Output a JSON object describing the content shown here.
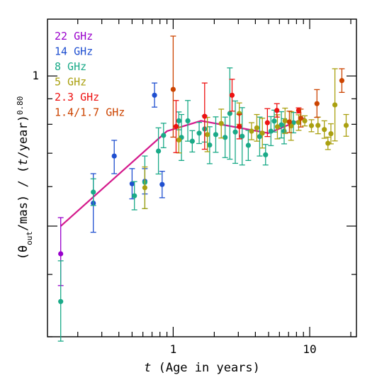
{
  "chart_data": {
    "type": "scatter",
    "x_axis": {
      "scale": "log",
      "range": [
        0.12,
        22
      ],
      "tick_labels": [
        "1",
        "10"
      ],
      "tick_values": [
        1,
        10
      ],
      "label_italic": "t",
      "label_rest": " (Age in years)"
    },
    "y_axis": {
      "scale": "log",
      "range": [
        0.3,
        1.3
      ],
      "tick_labels": [
        "1"
      ],
      "tick_values": [
        1
      ],
      "label_parts": [
        "(θ",
        "out",
        "/mas) / (",
        "t",
        "/year)",
        "0.80"
      ]
    },
    "legend": {
      "placement": "top-left",
      "entries": [
        {
          "label": "22 GHz",
          "color": "#9900cc"
        },
        {
          "label": "14 GHz",
          "color": "#1f4fd0"
        },
        {
          "label": "8 GHz",
          "color": "#1aaa88"
        },
        {
          "label": "5 GHz",
          "color": "#aaa010"
        },
        {
          "label": "2.3 GHz",
          "color": "#ee1111"
        },
        {
          "label": "1.4/1.7 GHz",
          "color": "#cc4400"
        }
      ]
    },
    "series": [
      {
        "name": "22 GHz",
        "color": "#9900cc",
        "points": [
          [
            0.15,
            0.44,
            0.52,
            0.38
          ]
        ]
      },
      {
        "name": "14 GHz",
        "color": "#1f4fd0",
        "points": [
          [
            0.26,
            0.556,
            0.637,
            0.486
          ],
          [
            0.37,
            0.691,
            0.743,
            0.637
          ],
          [
            0.5,
            0.608,
            0.652,
            0.567
          ],
          [
            0.62,
            0.615,
            0.652,
            0.58
          ],
          [
            0.73,
            0.915,
            0.968,
            0.866
          ],
          [
            0.83,
            0.606,
            0.644,
            0.57
          ]
        ]
      },
      {
        "name": "8 GHz",
        "color": "#1aaa88",
        "points": [
          [
            0.15,
            0.353,
            0.426,
            0.294
          ],
          [
            0.26,
            0.585,
            0.622,
            0.55
          ],
          [
            0.52,
            0.575,
            0.614,
            0.539
          ],
          [
            0.62,
            0.612,
            0.691,
            0.542
          ],
          [
            0.78,
            0.707,
            0.787,
            0.636
          ],
          [
            0.85,
            0.76,
            0.804,
            0.718
          ],
          [
            1.1,
            0.813,
            0.847,
            0.78
          ],
          [
            1.15,
            0.753,
            0.837,
            0.677
          ],
          [
            1.28,
            0.813,
            0.893,
            0.74
          ],
          [
            1.38,
            0.74,
            0.777,
            0.704
          ],
          [
            1.55,
            0.768,
            0.807,
            0.732
          ],
          [
            1.7,
            0.783,
            0.832,
            0.737
          ],
          [
            1.85,
            0.727,
            0.791,
            0.667
          ],
          [
            2.05,
            0.763,
            0.828,
            0.703
          ],
          [
            2.4,
            0.753,
            0.827,
            0.686
          ],
          [
            2.6,
            0.841,
            1.038,
            0.681
          ],
          [
            2.85,
            0.772,
            0.891,
            0.668
          ],
          [
            3.2,
            0.757,
            0.864,
            0.663
          ],
          [
            3.55,
            0.726,
            0.778,
            0.677
          ],
          [
            4.3,
            0.756,
            0.827,
            0.691
          ],
          [
            4.75,
            0.695,
            0.729,
            0.663
          ],
          [
            5.2,
            0.775,
            0.829,
            0.725
          ],
          [
            5.5,
            0.812,
            0.854,
            0.772
          ],
          [
            6.2,
            0.798,
            0.848,
            0.751
          ],
          [
            6.5,
            0.775,
            0.821,
            0.731
          ],
          [
            7.6,
            0.806,
            0.845,
            0.769
          ]
        ]
      },
      {
        "name": "5 GHz",
        "color": "#aaa010",
        "points": [
          [
            0.62,
            0.597,
            0.657,
            0.542
          ],
          [
            1.1,
            0.744,
            0.79,
            0.701
          ],
          [
            1.78,
            0.763,
            0.826,
            0.705
          ],
          [
            2.25,
            0.803,
            0.858,
            0.751
          ],
          [
            3.05,
            0.841,
            0.883,
            0.8
          ],
          [
            3.75,
            0.775,
            0.806,
            0.745
          ],
          [
            4.1,
            0.787,
            0.837,
            0.74
          ],
          [
            4.5,
            0.768,
            0.823,
            0.717
          ],
          [
            5.8,
            0.791,
            0.836,
            0.748
          ],
          [
            6.6,
            0.813,
            0.862,
            0.767
          ],
          [
            7.3,
            0.794,
            0.848,
            0.743
          ],
          [
            8.3,
            0.807,
            0.836,
            0.778
          ],
          [
            9.2,
            0.813,
            0.832,
            0.794
          ],
          [
            10.3,
            0.795,
            0.817,
            0.773
          ],
          [
            11.5,
            0.796,
            0.827,
            0.766
          ],
          [
            12.8,
            0.781,
            0.813,
            0.75
          ],
          [
            13.6,
            0.733,
            0.754,
            0.712
          ],
          [
            14.3,
            0.766,
            0.802,
            0.731
          ],
          [
            15.3,
            0.875,
            1.034,
            0.741
          ],
          [
            18.5,
            0.796,
            0.837,
            0.757
          ]
        ]
      },
      {
        "name": "2.3 GHz",
        "color": "#ee1111",
        "points": [
          [
            1.05,
            0.792,
            0.893,
            0.702
          ],
          [
            1.7,
            0.83,
            0.968,
            0.713
          ],
          [
            2.7,
            0.915,
            0.985,
            0.85
          ],
          [
            3.05,
            0.792,
            0.838,
            0.748
          ],
          [
            4.9,
            0.806,
            0.86,
            0.756
          ],
          [
            5.75,
            0.853,
            0.88,
            0.827
          ],
          [
            8.3,
            0.853,
            0.863,
            0.843
          ]
        ]
      },
      {
        "name": "1.4/1.7 GHz",
        "color": "#cc4400",
        "points": [
          [
            1.0,
            0.94,
            1.202,
            0.754
          ],
          [
            7.1,
            0.809,
            0.85,
            0.77
          ],
          [
            8.6,
            0.823,
            0.858,
            0.79
          ],
          [
            11.3,
            0.88,
            0.939,
            0.826
          ],
          [
            17.2,
            0.979,
            1.034,
            0.927
          ]
        ]
      }
    ],
    "fit_line": {
      "color": "#d41a8c",
      "points": [
        [
          0.15,
          0.5
        ],
        [
          0.9,
          0.775
        ],
        [
          1.6,
          0.813
        ],
        [
          5.0,
          0.768
        ],
        [
          9.2,
          0.823
        ]
      ]
    }
  }
}
